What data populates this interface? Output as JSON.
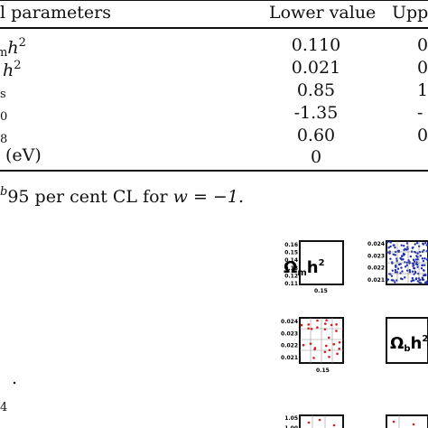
{
  "table": {
    "header": {
      "col1": "l parameters",
      "col2": "Lower value",
      "col3": "Upp"
    },
    "rows": [
      {
        "sym": "h",
        "sym_sup": "2",
        "sym_pre_sub": "m",
        "lower": "0.110",
        "upper": "0"
      },
      {
        "sym": "h",
        "sym_sup": "2",
        "sym_pre_sub": "",
        "lower": "0.021",
        "upper": "0"
      },
      {
        "sym": "",
        "sym_sup": "",
        "sym_pre_sub": "s",
        "lower": "0.85",
        "upper": "1"
      },
      {
        "sym": "",
        "sym_sup": "",
        "sym_pre_sub": "0",
        "lower": "-1.35",
        "upper": "-"
      },
      {
        "sym": "",
        "sym_sup": "",
        "sym_pre_sub": "8",
        "lower": "0.60",
        "upper": "0"
      },
      {
        "sym": "(eV)",
        "sym_sup": "",
        "sym_pre_sub": "",
        "lower": "0",
        "upper": ""
      }
    ]
  },
  "footnote": {
    "marker": "b",
    "text": "95  per cent CL for ",
    "math": "w = −1."
  },
  "fragments": {
    "dot": ".",
    "four": "4"
  },
  "panels": {
    "omega_m_label": "Ω",
    "omega_m_sub": "m",
    "omega_m_tail": "h",
    "omega_m_sup": "2",
    "omega_b_label": "Ω",
    "omega_b_sub": "b",
    "omega_b_tail": "h",
    "omega_b_sup": "2",
    "ticks_m": [
      "0.16",
      "0.15",
      "0.14",
      "0.13",
      "0.12",
      "0.11"
    ],
    "ticks_m_x": "0.15",
    "ticks_b": [
      "0.024",
      "0.023",
      "0.022",
      "0.021"
    ],
    "ticks_b2": [
      "0.024",
      "0.023",
      "0.022",
      "0.021"
    ],
    "ticks_b_x": "0.15",
    "ticks_c": [
      "1.05",
      "1.00"
    ],
    "blue_color": "#1f2fb0",
    "red_color": "#d42020"
  }
}
